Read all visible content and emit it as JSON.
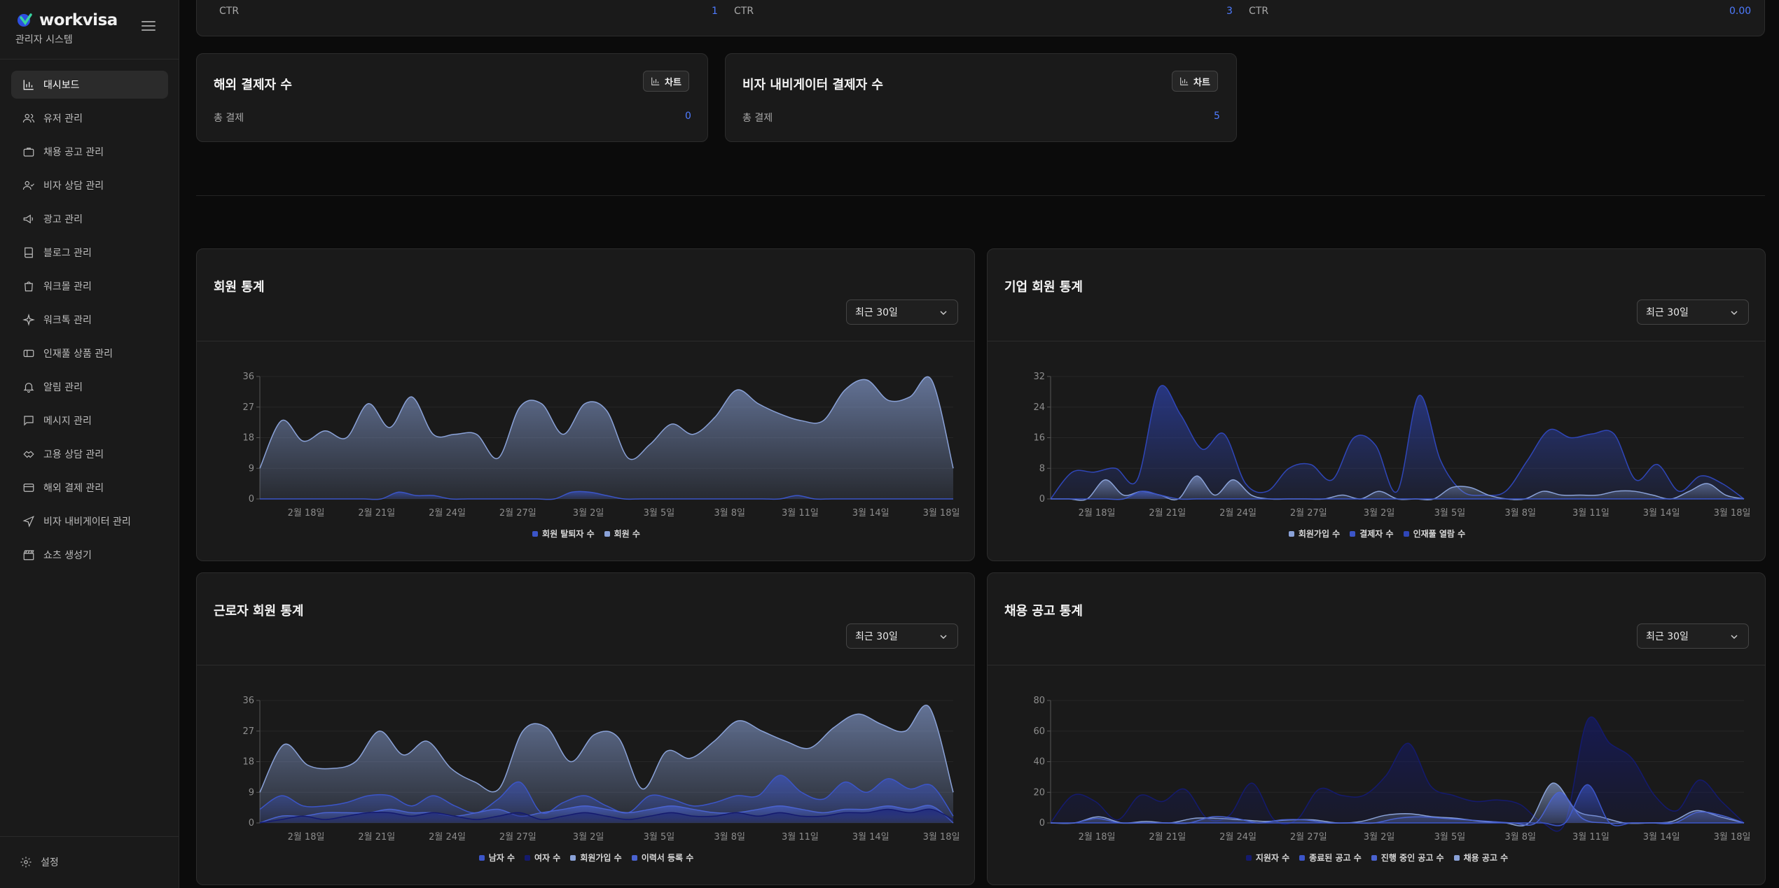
{
  "brand": {
    "logo_text": "workvisa",
    "subtitle": "관리자 시스템"
  },
  "sidebar": {
    "items": [
      {
        "label": "대시보드",
        "icon": "bar-chart-icon",
        "active": true
      },
      {
        "label": "유저 관리",
        "icon": "users-icon"
      },
      {
        "label": "채용 공고 관리",
        "icon": "briefcase-icon"
      },
      {
        "label": "비자 상담 관리",
        "icon": "user-check-icon"
      },
      {
        "label": "광고 관리",
        "icon": "megaphone-icon"
      },
      {
        "label": "블로그 관리",
        "icon": "book-icon"
      },
      {
        "label": "워크몰 관리",
        "icon": "shopping-bag-icon"
      },
      {
        "label": "워크톡 관리",
        "icon": "sparkle-icon"
      },
      {
        "label": "인재풀 상품 관리",
        "icon": "ticket-icon"
      },
      {
        "label": "알림 관리",
        "icon": "bell-icon"
      },
      {
        "label": "메시지 관리",
        "icon": "message-icon"
      },
      {
        "label": "고용 상담 관리",
        "icon": "handshake-icon"
      },
      {
        "label": "해외 결제 관리",
        "icon": "credit-card-icon"
      },
      {
        "label": "비자 내비게이터 관리",
        "icon": "navigation-icon"
      },
      {
        "label": "쇼츠 생성기",
        "icon": "clapperboard-icon"
      }
    ],
    "settings_label": "설정"
  },
  "ctr_cards": [
    {
      "label": "CTR",
      "value": "1"
    },
    {
      "label": "CTR",
      "value": "3"
    },
    {
      "label": "CTR",
      "value": "0.00"
    }
  ],
  "stat_cards": [
    {
      "title": "해외 결제자 수",
      "button": "차트",
      "label": "총 결제",
      "value": "0"
    },
    {
      "title": "비자 내비게이터 결제자 수",
      "button": "차트",
      "label": "총 결제",
      "value": "5"
    }
  ],
  "charts_common": {
    "period_label": "최근 30일",
    "x_ticks": [
      "2월 18일",
      "2월 21일",
      "2월 24일",
      "2월 27일",
      "3월 2일",
      "3월 5일",
      "3월 8일",
      "3월 11일",
      "3월 14일",
      "3월 18일"
    ]
  },
  "colors": {
    "accent": "#4e7bff",
    "bg": "#0b0b0b",
    "card": "#1a1a1a",
    "series_light": "#8aa2d8",
    "series_mid": "#3b55c8",
    "series_dark": "#141a6e"
  },
  "chart_data": [
    {
      "type": "area",
      "title": "회원 통계",
      "ylim": [
        0,
        36
      ],
      "yticks": [
        0,
        9,
        18,
        27,
        36
      ],
      "series": [
        {
          "name": "회원 탈퇴자 수",
          "color": "#3b55c8",
          "values": [
            0,
            0,
            0,
            0,
            0,
            0,
            0,
            0,
            2,
            1,
            1,
            0,
            0,
            0,
            0,
            0,
            0,
            0,
            2,
            2,
            1,
            0,
            0,
            0,
            0,
            0,
            0,
            0,
            0,
            0,
            0,
            1,
            0,
            0,
            0,
            0,
            0,
            0,
            0,
            0,
            0
          ]
        },
        {
          "name": "회원 수",
          "color": "#8aa2d8",
          "values": [
            9,
            23,
            17,
            20,
            18,
            28,
            21,
            30,
            19,
            19,
            19,
            12,
            27,
            28,
            19,
            28,
            26,
            12,
            16,
            22,
            19,
            24,
            32,
            28,
            25,
            23,
            23,
            32,
            35,
            29,
            30,
            35,
            9
          ]
        }
      ]
    },
    {
      "type": "area",
      "title": "기업 회원 통계",
      "ylim": [
        0,
        32
      ],
      "yticks": [
        0,
        8,
        16,
        24,
        32
      ],
      "series": [
        {
          "name": "회원가입 수",
          "color": "#8aa2d8",
          "values": [
            0,
            0,
            0,
            5,
            1,
            2,
            1,
            0,
            6,
            1,
            5,
            1,
            0,
            0,
            0,
            0,
            1,
            0,
            2,
            0,
            0,
            0,
            3,
            3,
            1,
            0,
            0,
            2,
            1,
            1,
            1,
            2,
            2,
            1,
            0,
            2,
            4,
            1,
            0
          ]
        },
        {
          "name": "결제자 수",
          "color": "#3b55c8",
          "values": [
            0,
            0,
            0,
            0,
            0,
            2,
            1,
            0,
            0,
            0,
            0,
            0,
            0,
            0,
            0,
            0,
            0,
            0,
            0,
            0,
            0,
            0,
            0,
            0,
            0,
            0,
            0,
            0,
            0,
            0,
            0,
            0,
            0,
            0,
            0,
            0,
            0,
            0,
            0
          ]
        },
        {
          "name": "인재풀 열람 수",
          "color": "#2f46b8",
          "values": [
            0,
            7,
            7,
            8,
            5,
            29,
            22,
            13,
            17,
            4,
            2,
            8,
            9,
            5,
            16,
            14,
            2,
            27,
            10,
            2,
            1,
            2,
            10,
            18,
            16,
            17,
            17,
            5,
            9,
            2,
            6,
            4,
            0
          ]
        }
      ]
    },
    {
      "type": "area",
      "title": "근로자 회원 통계",
      "ylim": [
        0,
        36
      ],
      "yticks": [
        0,
        9,
        18,
        27,
        36
      ],
      "series": [
        {
          "name": "남자 수",
          "color": "#3b55c8",
          "values": [
            4,
            8,
            5,
            5,
            6,
            8,
            8,
            5,
            8,
            5,
            3,
            7,
            12,
            3,
            6,
            8,
            5,
            3,
            8,
            7,
            5,
            6,
            8,
            8,
            14,
            9,
            7,
            12,
            9,
            13,
            10,
            11,
            2
          ]
        },
        {
          "name": "여자 수",
          "color": "#141a6e",
          "values": [
            0,
            1,
            2,
            1,
            2,
            3,
            3,
            2,
            3,
            2,
            1,
            2,
            3,
            1,
            2,
            3,
            2,
            1,
            2,
            3,
            2,
            2,
            3,
            2,
            3,
            2,
            2,
            3,
            3,
            4,
            3,
            4,
            1
          ]
        },
        {
          "name": "회원가입 수",
          "color": "#8aa2d8",
          "values": [
            9,
            23,
            17,
            16,
            18,
            27,
            20,
            24,
            16,
            12,
            10,
            27,
            28,
            18,
            26,
            25,
            10,
            21,
            19,
            24,
            30,
            27,
            24,
            22,
            28,
            32,
            29,
            27,
            34,
            9
          ]
        },
        {
          "name": "이력서 등록 수",
          "color": "#4a63d0",
          "values": [
            0,
            2,
            2,
            3,
            3,
            3,
            4,
            3,
            3,
            2,
            3,
            4,
            2,
            3,
            4,
            5,
            4,
            3,
            4,
            5,
            4,
            3,
            3,
            4,
            5,
            4,
            3,
            4,
            4,
            5,
            4,
            5,
            0
          ]
        }
      ]
    },
    {
      "type": "area",
      "title": "채용 공고 통계",
      "ylim": [
        0,
        80
      ],
      "yticks": [
        0,
        20,
        40,
        60,
        80
      ],
      "series": [
        {
          "name": "지원자 수",
          "color": "#141a6e",
          "values": [
            0,
            18,
            14,
            2,
            18,
            14,
            22,
            3,
            5,
            26,
            2,
            2,
            22,
            18,
            18,
            31,
            52,
            24,
            18,
            14,
            15,
            12,
            0,
            0,
            67,
            52,
            42,
            18,
            8,
            28,
            14,
            0
          ]
        },
        {
          "name": "종료된 공고 수",
          "color": "#3b55c8",
          "values": [
            0,
            0,
            0,
            0,
            0,
            0,
            0,
            0,
            0,
            0,
            0,
            0,
            0,
            0,
            0,
            0,
            0,
            0,
            0,
            0,
            0,
            0,
            0,
            0,
            25,
            0,
            0,
            0,
            0,
            0,
            0,
            0
          ]
        },
        {
          "name": "진행 중인 공고 수",
          "color": "#4a63d0",
          "values": [
            0,
            0,
            3,
            0,
            0,
            0,
            0,
            4,
            3,
            0,
            2,
            2,
            0,
            0,
            0,
            3,
            4,
            3,
            2,
            1,
            0,
            0,
            20,
            3,
            0,
            0,
            0,
            0,
            7,
            5,
            0
          ]
        },
        {
          "name": "채용 공고 수",
          "color": "#8aa2d8",
          "values": [
            0,
            0,
            4,
            0,
            1,
            0,
            3,
            3,
            2,
            1,
            2,
            2,
            0,
            1,
            5,
            6,
            4,
            3,
            1,
            0,
            0,
            26,
            8,
            4,
            0,
            0,
            1,
            8,
            4,
            0
          ]
        }
      ]
    }
  ]
}
